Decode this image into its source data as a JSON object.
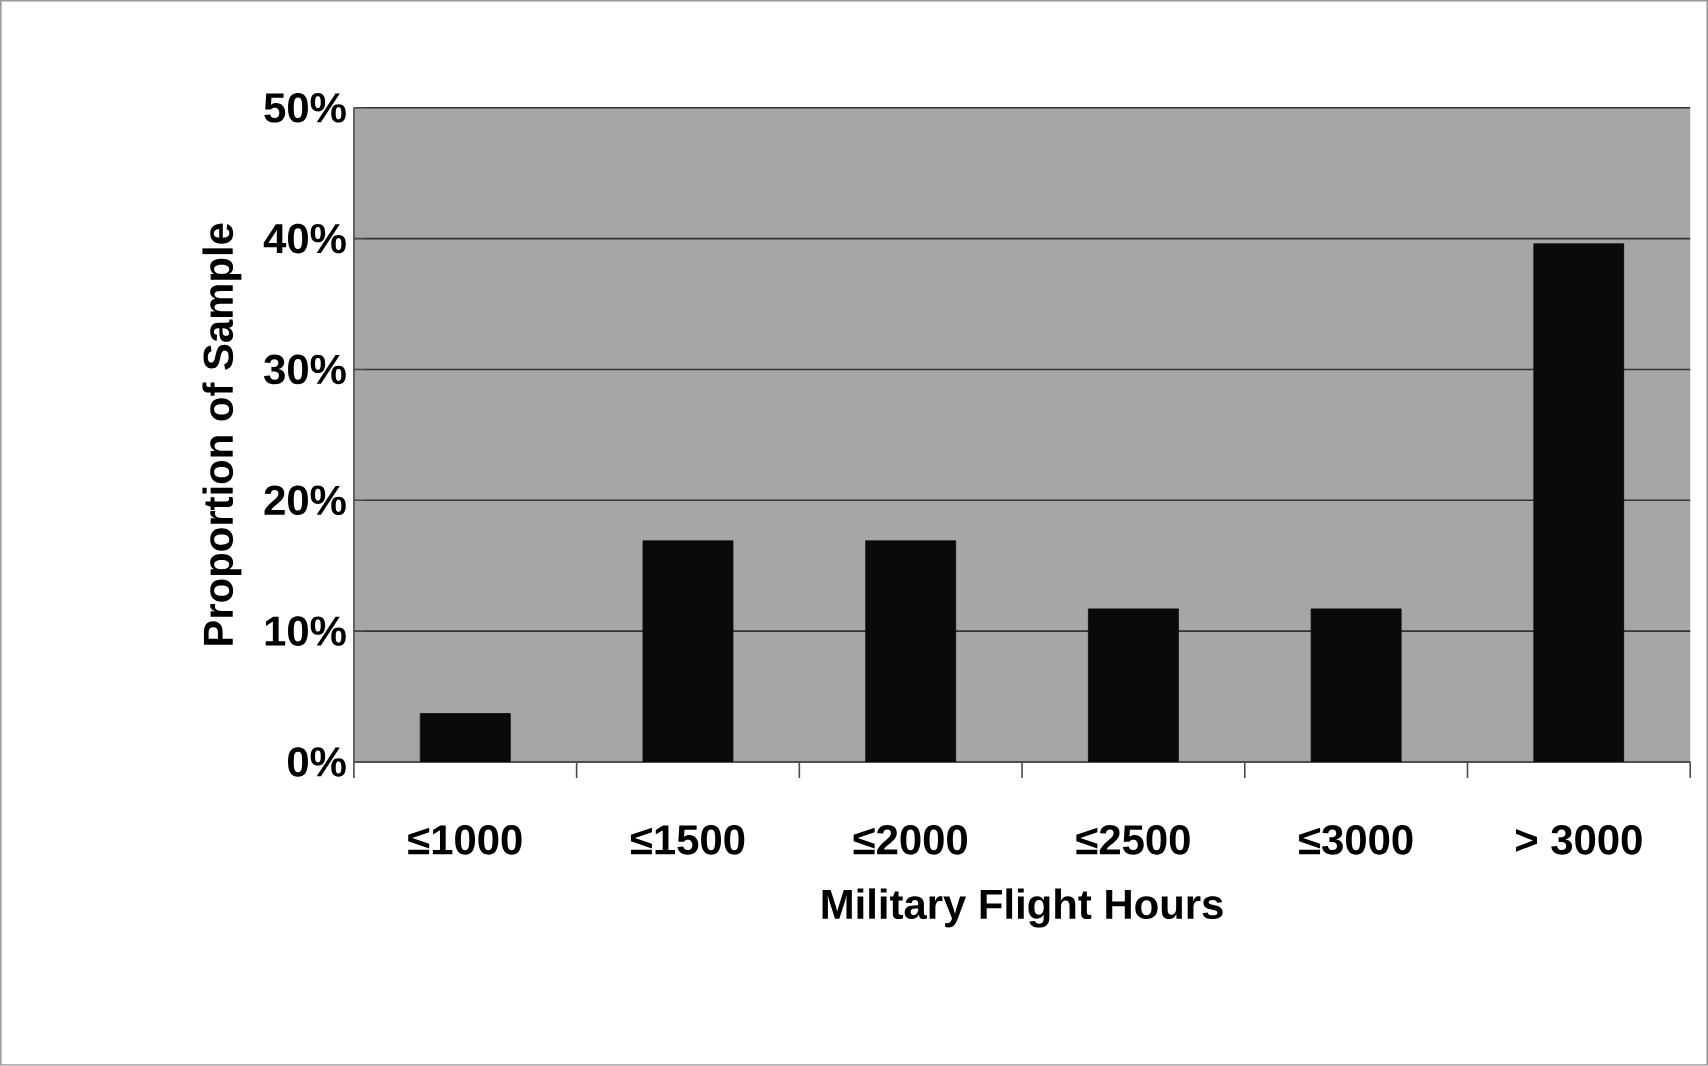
{
  "chart_data": {
    "type": "bar",
    "xlabel": "Military Flight Hours",
    "ylabel": "Proportion of Sample",
    "categories": [
      "≤1000",
      "≤1500",
      "≤2000",
      "≤2500",
      "≤3000",
      "> 3000"
    ],
    "values": [
      3.7,
      16.9,
      16.9,
      11.7,
      11.7,
      39.6
    ],
    "color": "#0a0a0a",
    "ylim": [
      0,
      50
    ],
    "yticks": [
      {
        "value": 0,
        "label": "0%"
      },
      {
        "value": 10,
        "label": "10%"
      },
      {
        "value": 20,
        "label": "20%"
      },
      {
        "value": 30,
        "label": "30%"
      },
      {
        "value": 40,
        "label": "40%"
      },
      {
        "value": 50,
        "label": "50%"
      }
    ],
    "grid": "y"
  }
}
